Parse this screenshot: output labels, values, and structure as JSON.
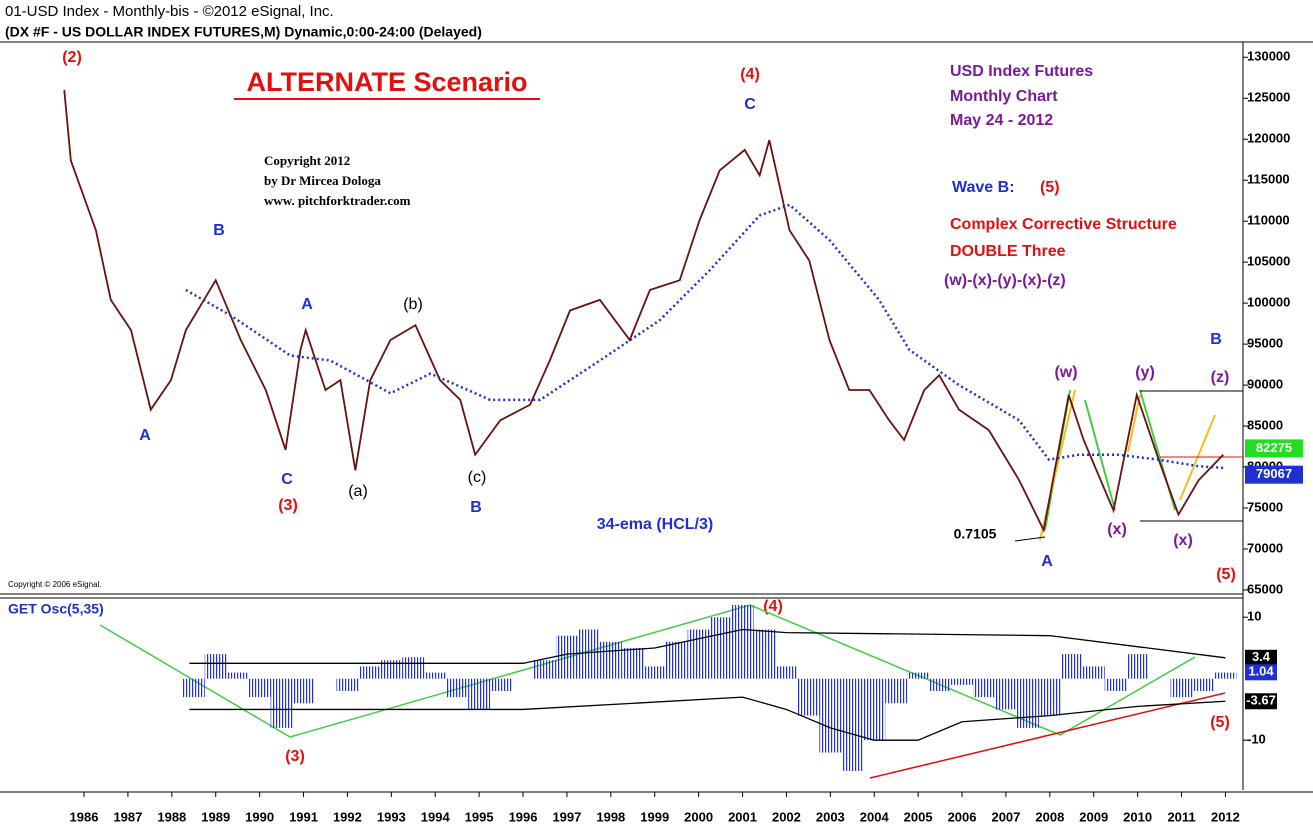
{
  "header": {
    "line1": "01-USD Index - Monthly-bis - ©2012 eSignal, Inc.",
    "line2": "(DX #F - US DOLLAR INDEX FUTURES,M) Dynamic,0:00-24:00 (Delayed)"
  },
  "chart_data": [
    {
      "type": "line",
      "title": "ALTERNATE Scenario",
      "annotations": [
        "Copyright 2012",
        "by Dr Mircea Dologa",
        "www. pitchforktrader.com",
        "USD Index Futures",
        "Monthly Chart",
        "May 24 - 2012",
        "Wave B:",
        "(5)",
        "Complex Corrective Structure",
        "DOUBLE Three",
        "(w)-(x)-(y)-(x)-(z)",
        "(2)",
        "B",
        "A",
        "C",
        "(3)",
        "A",
        "(a)",
        "(b)",
        "(c)",
        "B",
        "34-ema (HCL/3)",
        "(4)",
        "C",
        "0.7105",
        "A",
        "(w)",
        "(x)",
        "(y)",
        "(x)",
        "B",
        "(z)",
        "(5)",
        "Copyright © 2006 eSignal."
      ],
      "x": [
        1985.55,
        1985.7,
        1986.27,
        1986.61,
        1987.07,
        1987.52,
        1987.98,
        1988.32,
        1989.0,
        1989.57,
        1990.14,
        1990.59,
        1990.93,
        1991.05,
        1991.5,
        1991.84,
        1992.18,
        1992.52,
        1992.98,
        1993.55,
        1994.11,
        1994.57,
        1994.91,
        1995.48,
        1996.16,
        1996.61,
        1997.07,
        1997.75,
        1998.43,
        1998.89,
        1999.57,
        2000.02,
        2000.48,
        2001.05,
        2001.39,
        2001.61,
        2002.07,
        2002.52,
        2002.98,
        2003.43,
        2003.89,
        2004.34,
        2004.68,
        2005.14,
        2005.48,
        2005.93,
        2006.61,
        2007.3,
        2007.86,
        2008.43,
        2008.77,
        2009.45,
        2009.98,
        2010.48,
        2010.93,
        2011.39,
        2011.95
      ],
      "series": [
        {
          "color": "#6a1010",
          "values": [
            126000,
            117400,
            108900,
            100400,
            96700,
            87000,
            90600,
            96700,
            102800,
            95500,
            89400,
            82100,
            94300,
            96700,
            89400,
            90600,
            79600,
            90600,
            95500,
            97300,
            90600,
            88200,
            81500,
            85700,
            87600,
            93000,
            99100,
            100400,
            95500,
            101600,
            102800,
            110100,
            116200,
            118700,
            115600,
            119900,
            108900,
            105200,
            95500,
            89400,
            89400,
            85700,
            83300,
            89400,
            91200,
            87000,
            84500,
            78400,
            72300,
            88800,
            83300,
            74700,
            88800,
            80900,
            74200,
            78400,
            81500
          ]
        },
        {
          "color": "#1f2fd0",
          "style": "dotted",
          "x": [
            1988.32,
            1989.34,
            1990.7,
            1991.61,
            1992.98,
            1993.89,
            1995.25,
            1996.39,
            1997.75,
            1999.11,
            2000.25,
            2001.39,
            2002.07,
            2002.98,
            2004.11,
            2004.8,
            2005.93,
            2007.3,
            2007.98,
            2008.66,
            2009.57,
            2010.48,
            2011.39,
            2011.95
          ],
          "values": [
            101600,
            98500,
            93600,
            93000,
            89000,
            91400,
            88200,
            88200,
            93000,
            97900,
            104000,
            110700,
            112000,
            107700,
            100400,
            94300,
            90000,
            85700,
            80900,
            81500,
            81500,
            80900,
            80100,
            79900
          ]
        }
      ],
      "xlim": [
        1984.2,
        2012.4
      ],
      "xticks": [
        1986,
        1987,
        1988,
        1989,
        1990,
        1991,
        1992,
        1993,
        1994,
        1995,
        1996,
        1997,
        1998,
        1999,
        2000,
        2001,
        2002,
        2003,
        2004,
        2005,
        2006,
        2007,
        2008,
        2009,
        2010,
        2011,
        2012
      ],
      "ylim": [
        64750,
        131500
      ],
      "yticks": [
        65000,
        70000,
        75000,
        80000,
        85000,
        90000,
        95000,
        100000,
        105000,
        110000,
        115000,
        120000,
        125000,
        130000
      ],
      "price_tags": [
        {
          "value": 82275,
          "color": "#22dd22"
        },
        {
          "value": 79067,
          "color": "#1f2fd0"
        }
      ]
    },
    {
      "type": "bar",
      "title": "GET Osc(5,35)",
      "annotations": [
        "(4)",
        "(3)",
        "(5)"
      ],
      "x": [
        1988.5,
        1989.0,
        1989.5,
        1990.0,
        1990.5,
        1991.0,
        1991.5,
        1992.0,
        1992.5,
        1993.0,
        1993.5,
        1994.0,
        1994.5,
        1995.0,
        1995.5,
        1996.0,
        1996.5,
        1997.0,
        1997.5,
        1998.0,
        1998.5,
        1999.0,
        1999.5,
        2000.0,
        2000.5,
        2001.0,
        2001.5,
        2002.0,
        2002.5,
        2003.0,
        2003.5,
        2004.0,
        2004.5,
        2005.0,
        2005.5,
        2006.0,
        2006.5,
        2007.0,
        2007.5,
        2008.0,
        2008.5,
        2009.0,
        2009.5,
        2010.0,
        2010.5,
        2011.0,
        2011.5,
        2012.0
      ],
      "values": [
        -3,
        4,
        1,
        -3,
        -8,
        -4,
        0,
        -2,
        2,
        3,
        3.5,
        1,
        -3,
        -5,
        -2,
        0,
        3,
        7,
        8,
        6,
        5,
        2,
        6,
        8,
        10,
        12,
        8,
        2,
        -6,
        -12,
        -15,
        -10,
        -4,
        1,
        -2,
        -1,
        -3,
        -5,
        -8,
        -6,
        4,
        2,
        -2,
        4,
        0,
        -3,
        -2,
        1
      ],
      "color": "#2233cc",
      "ylim": [
        -18.1,
        12.8
      ],
      "yticks": [
        10,
        -10
      ],
      "bands": [
        {
          "color": "#000000",
          "x": [
            1988.4,
            1996,
            1997,
            1999,
            2001,
            2002,
            2008,
            2012
          ],
          "values": [
            2.5,
            2.5,
            4,
            5,
            8,
            7.5,
            7,
            3.4
          ]
        },
        {
          "color": "#000000",
          "x": [
            1988.4,
            1996,
            2001,
            2002,
            2003,
            2004,
            2005,
            2006,
            2008,
            2010,
            2012
          ],
          "values": [
            -5,
            -5,
            -3,
            -5,
            -8,
            -10,
            -10,
            -7,
            -6,
            -4.5,
            -3.67
          ]
        }
      ],
      "value_tags": [
        {
          "value": 3.4,
          "color": "#000000"
        },
        {
          "value": 1.04,
          "color": "#1f2fd0"
        },
        {
          "value": -3.67,
          "color": "#000000"
        }
      ]
    }
  ]
}
